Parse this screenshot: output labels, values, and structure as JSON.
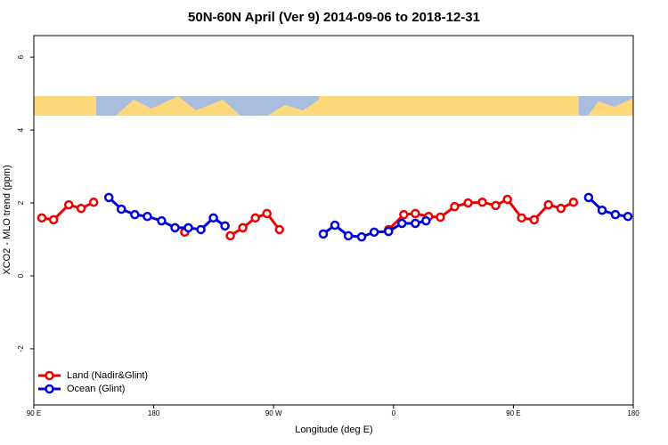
{
  "chart_data": {
    "type": "line",
    "title": "50N-60N April (Ver 9)   2014-09-06 to 2018-12-31",
    "x_label": "Longitude (deg E)",
    "y_label": "XCO2 - MLO trend (ppm)",
    "xlim": [
      90,
      540
    ],
    "ylim": [
      -3.54,
      6.59
    ],
    "xticks": [
      {
        "value": 90,
        "label": "90 E"
      },
      180,
      {
        "value": 270,
        "label": "90 W"
      },
      {
        "value": 360,
        "label": "0"
      },
      {
        "value": 450,
        "label": "90 E"
      },
      {
        "value": 540,
        "label": "180"
      }
    ],
    "yticks": [
      -2,
      0,
      2,
      4,
      6
    ],
    "legend": "bottom-left",
    "series": [
      {
        "name": "Land (Nadir&Glint)",
        "color": "#ee0000",
        "x": [
          96,
          104.8,
          116.2,
          125.5,
          134.9,
          null,
          203.3,
          null,
          237.5,
          246.9,
          256.3,
          265.0,
          274.4,
          null,
          356.3,
          367.7,
          376.4,
          386.4,
          395.2,
          405.9,
          416.0,
          426.7,
          436.7,
          445.5,
          456.2,
          465.6,
          476.3,
          485.7,
          495.1
        ],
        "values": [
          1.59,
          1.54,
          1.95,
          1.85,
          2.02,
          null,
          1.2,
          null,
          1.1,
          1.32,
          1.59,
          1.71,
          1.27,
          null,
          1.27,
          1.68,
          1.71,
          1.63,
          1.61,
          1.9,
          2.0,
          2.02,
          1.93,
          2.1,
          1.59,
          1.54,
          1.95,
          1.85,
          2.02
        ]
      },
      {
        "name": "Ocean (Glint)",
        "color": "#0000dd",
        "x": [
          146.3,
          155.7,
          165.8,
          175.2,
          185.9,
          196.0,
          206.0,
          215.4,
          224.8,
          233.5,
          null,
          307.3,
          316.0,
          326.1,
          336.1,
          345.5,
          356.3,
          366.3,
          376.4,
          384.4,
          null,
          506.5,
          516.6,
          526.6,
          536.0
        ],
        "values": [
          2.15,
          1.83,
          1.68,
          1.63,
          1.51,
          1.32,
          1.32,
          1.27,
          1.59,
          1.37,
          null,
          1.15,
          1.39,
          1.1,
          1.07,
          1.2,
          1.22,
          1.44,
          1.44,
          1.51,
          null,
          2.15,
          1.8,
          1.68,
          1.63
        ]
      }
    ]
  }
}
